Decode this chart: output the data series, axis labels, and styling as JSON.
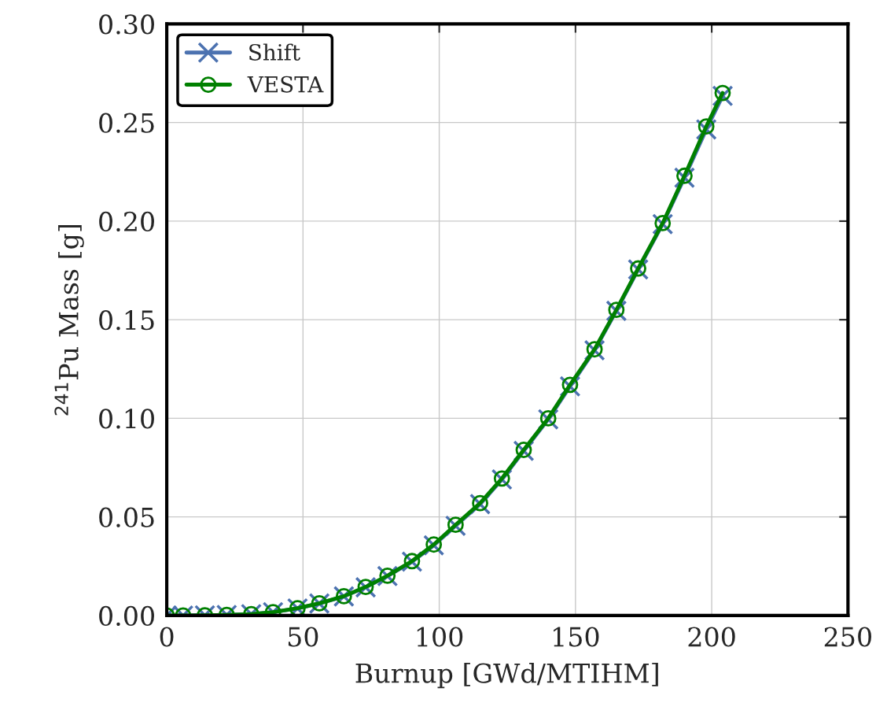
{
  "chart_data": {
    "type": "line",
    "xlabel": "Burnup [GWd/MTIHM]",
    "ylabel": "$^{241}$Pu Mass [g]",
    "x": [
      0,
      6,
      14,
      22,
      31,
      39,
      48,
      56,
      65,
      73,
      81,
      90,
      98,
      106,
      115,
      123,
      131,
      140,
      148,
      157,
      165,
      173,
      182,
      190,
      198,
      204
    ],
    "series": [
      {
        "name": "Shift",
        "color": "#4c72b0",
        "marker": "cross",
        "values": [
          0,
          0,
          0.0001,
          0.0003,
          0.0007,
          0.0017,
          0.0036,
          0.0061,
          0.0097,
          0.0143,
          0.02,
          0.0273,
          0.0356,
          0.0455,
          0.0565,
          0.069,
          0.0835,
          0.0995,
          0.1162,
          0.1345,
          0.1545,
          0.1755,
          0.1985,
          0.222,
          0.2465,
          0.2635
        ]
      },
      {
        "name": "VESTA",
        "color": "#008000",
        "marker": "circle",
        "values": [
          0,
          0,
          0.0001,
          0.0003,
          0.0007,
          0.0017,
          0.0037,
          0.0062,
          0.0098,
          0.0145,
          0.0202,
          0.0276,
          0.036,
          0.046,
          0.057,
          0.0695,
          0.084,
          0.1,
          0.117,
          0.135,
          0.155,
          0.176,
          0.199,
          0.223,
          0.248,
          0.265
        ]
      }
    ],
    "xlim": [
      0,
      250
    ],
    "xticks": [
      0,
      50,
      100,
      150,
      200,
      250
    ],
    "ylim": [
      0,
      0.3
    ],
    "yticks": [
      {
        "value": 0,
        "label": "0.00"
      },
      {
        "value": 0.05,
        "label": "0.05"
      },
      {
        "value": 0.1,
        "label": "0.10"
      },
      {
        "value": 0.15,
        "label": "0.15"
      },
      {
        "value": 0.2,
        "label": "0.20"
      },
      {
        "value": 0.25,
        "label": "0.25"
      },
      {
        "value": 0.3,
        "label": "0.30"
      }
    ],
    "grid": true,
    "legend": "top left"
  }
}
